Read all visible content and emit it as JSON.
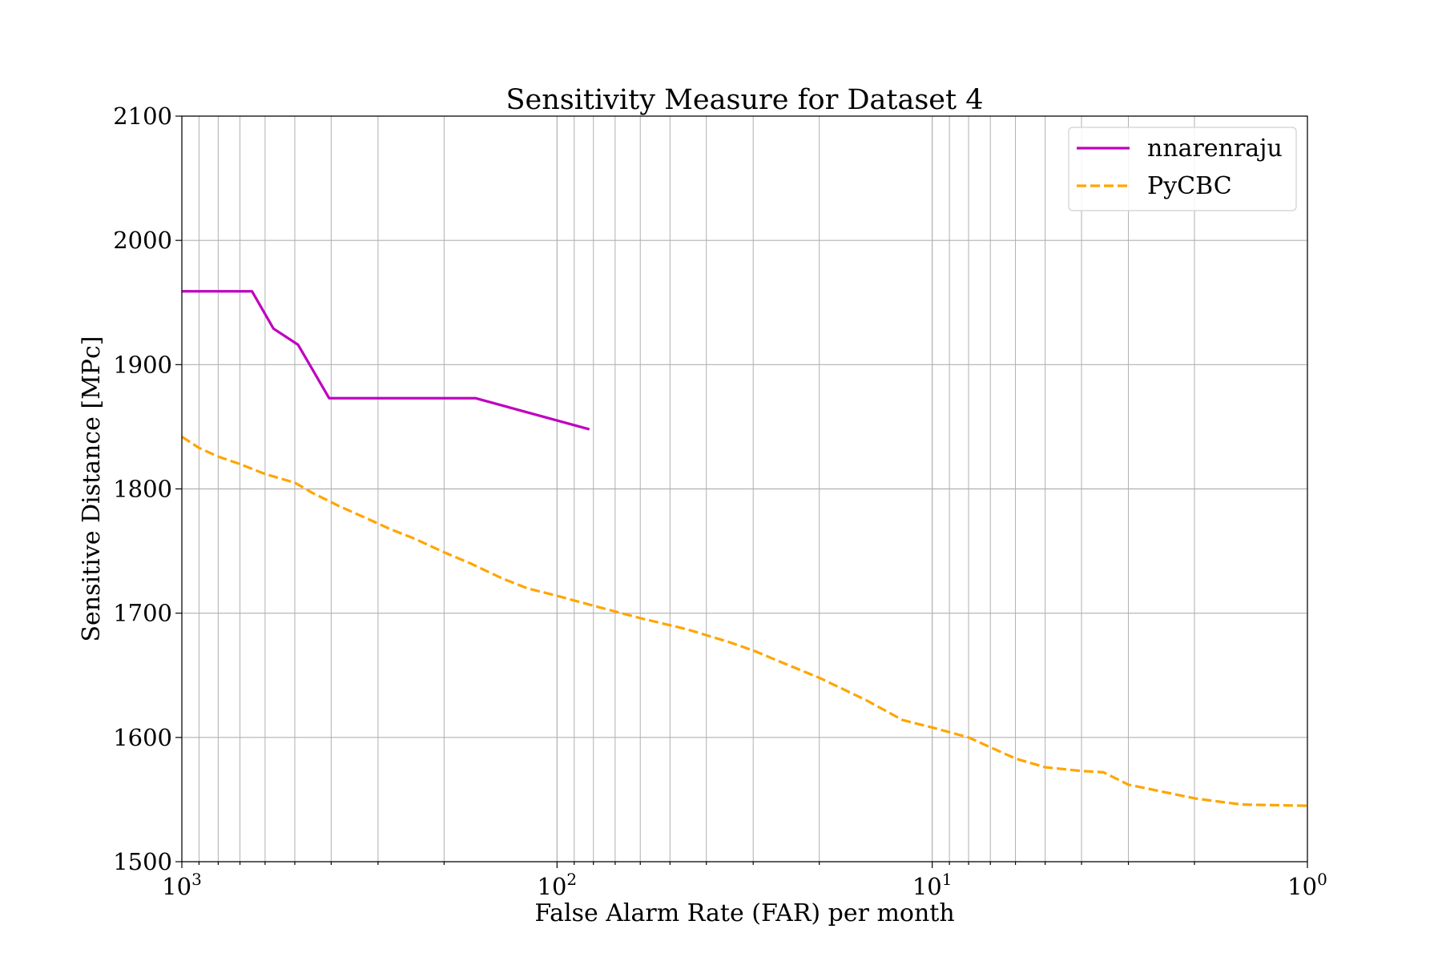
{
  "chart_data": {
    "type": "line",
    "title": "Sensitivity Measure for Dataset 4",
    "xlabel": "False Alarm Rate (FAR) per month",
    "ylabel": "Sensitive Distance [MPc]",
    "x_scale": "log",
    "x_reversed": true,
    "xlim": [
      1000,
      1
    ],
    "ylim": [
      1500,
      2100
    ],
    "grid": true,
    "legend_position": "top-right",
    "x_ticks": [
      {
        "base": "10",
        "exp": "3",
        "value": 1000
      },
      {
        "base": "10",
        "exp": "2",
        "value": 100
      },
      {
        "base": "10",
        "exp": "1",
        "value": 10
      },
      {
        "base": "10",
        "exp": "0",
        "value": 1
      }
    ],
    "y_ticks": [
      "1500",
      "1600",
      "1700",
      "1800",
      "1900",
      "2000",
      "2100"
    ],
    "series": [
      {
        "name": "nnarenraju",
        "color": "#bf00bf",
        "style": "solid",
        "x": [
          1000,
          650,
          570,
          490,
          405,
          165,
          82
        ],
        "y": [
          1959,
          1959,
          1929,
          1916,
          1873,
          1873,
          1848
        ]
      },
      {
        "name": "PyCBC",
        "color": "#ffa500",
        "style": "dashed",
        "x": [
          1000,
          900,
          800,
          700,
          600,
          500,
          450,
          380,
          320,
          280,
          240,
          200,
          170,
          140,
          120,
          100,
          80,
          60,
          45,
          35,
          30,
          25,
          20,
          15,
          12,
          10,
          8,
          6,
          5,
          4,
          3.5,
          3,
          2,
          1.5,
          1
        ],
        "y": [
          1842,
          1833,
          1826,
          1820,
          1812,
          1805,
          1797,
          1786,
          1776,
          1768,
          1760,
          1749,
          1740,
          1728,
          1720,
          1714,
          1706,
          1696,
          1687,
          1677,
          1670,
          1660,
          1648,
          1630,
          1614,
          1608,
          1600,
          1583,
          1576,
          1573,
          1572,
          1562,
          1551,
          1546,
          1545
        ]
      }
    ]
  }
}
